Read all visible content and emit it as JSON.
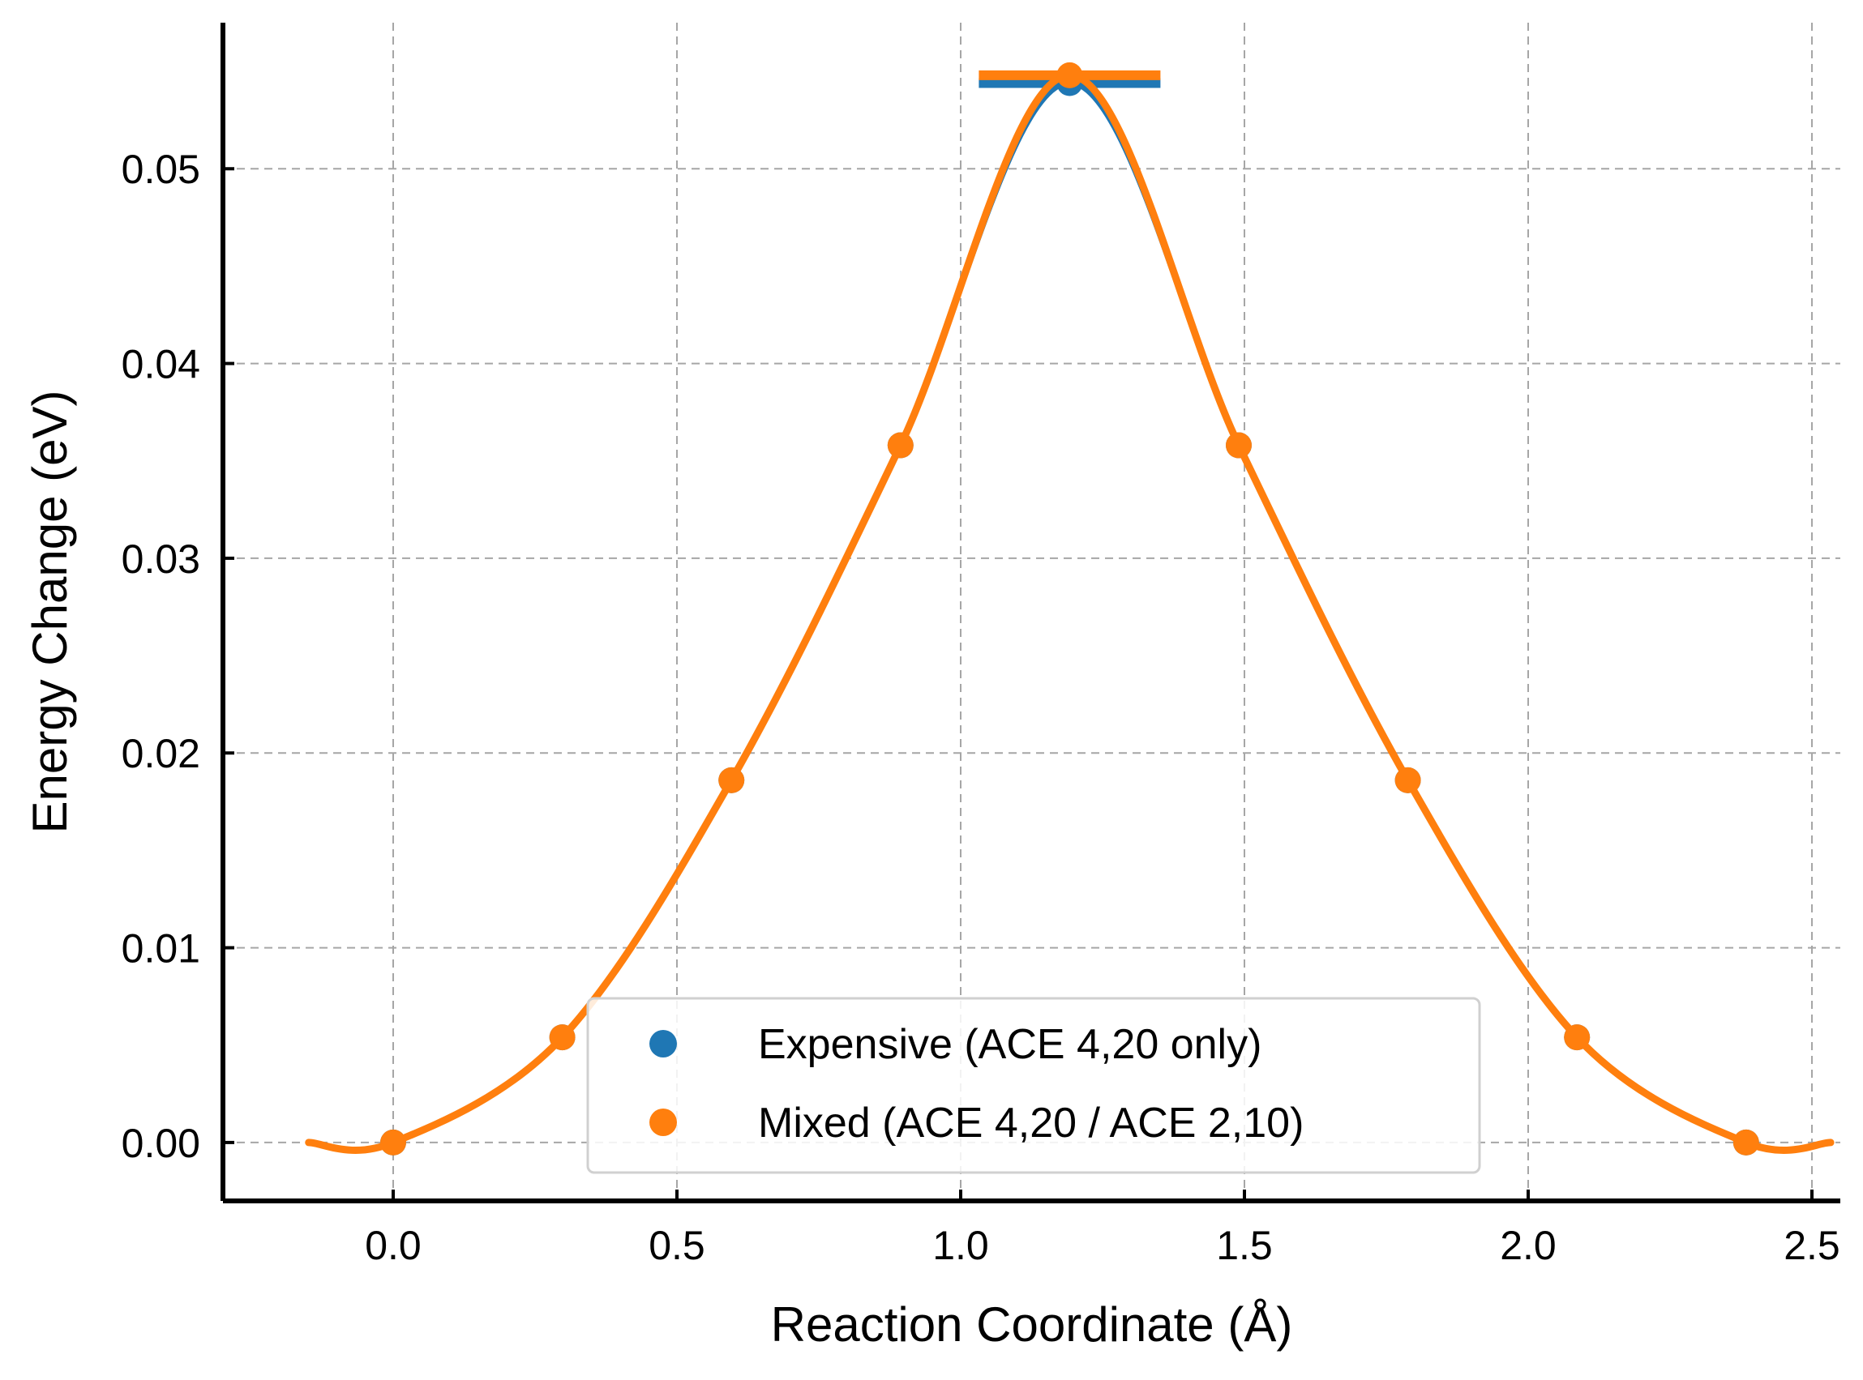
{
  "chart_data": {
    "type": "line",
    "xlabel": "Reaction Coordinate (Å)",
    "ylabel": "Energy Change (eV)",
    "xlim": [
      -0.3,
      2.55
    ],
    "ylim": [
      -0.003,
      0.0575
    ],
    "xticks": [
      0.0,
      0.5,
      1.0,
      1.5,
      2.0,
      2.5
    ],
    "xtick_labels": [
      "0.0",
      "0.5",
      "1.0",
      "1.5",
      "2.0",
      "2.5"
    ],
    "yticks": [
      0.0,
      0.01,
      0.02,
      0.03,
      0.04,
      0.05
    ],
    "ytick_labels": [
      "0.00",
      "0.01",
      "0.02",
      "0.03",
      "0.04",
      "0.05"
    ],
    "grid": true,
    "legend_position": "lower-center",
    "series": [
      {
        "name": "Expensive (ACE 4,20 only)",
        "color": "#1f77b4",
        "x": [
          0.0,
          0.298,
          0.596,
          0.894,
          1.192,
          1.49,
          1.788,
          2.086,
          2.384
        ],
        "y": [
          0.0,
          0.0054,
          0.0186,
          0.0358,
          0.0544,
          0.0358,
          0.0186,
          0.0054,
          0.0
        ]
      },
      {
        "name": "Mixed (ACE 4,20 / ACE 2,10)",
        "color": "#ff7f0e",
        "x": [
          0.0,
          0.298,
          0.596,
          0.894,
          1.192,
          1.49,
          1.788,
          2.086,
          2.384
        ],
        "y": [
          0.0,
          0.0054,
          0.0186,
          0.0358,
          0.0548,
          0.0358,
          0.0186,
          0.0054,
          0.0
        ]
      }
    ]
  }
}
